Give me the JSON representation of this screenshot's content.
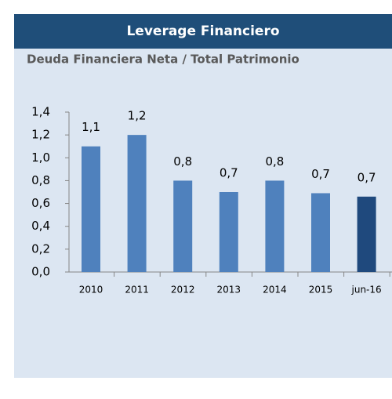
{
  "chart_data": {
    "type": "bar",
    "title": "Leverage Financiero",
    "subtitle": "Deuda Financiera Neta / Total Patrimonio",
    "categories": [
      "2010",
      "2011",
      "2012",
      "2013",
      "2014",
      "2015",
      "jun-16"
    ],
    "values": [
      1.1,
      1.2,
      0.8,
      0.7,
      0.8,
      0.69,
      0.66
    ],
    "value_labels": [
      "1,1",
      "1,2",
      "0,8",
      "0,7",
      "0,8",
      "0,7",
      "0,7"
    ],
    "colors": [
      "#4f81bd",
      "#4f81bd",
      "#4f81bd",
      "#4f81bd",
      "#4f81bd",
      "#4f81bd",
      "#1f497d"
    ],
    "ylim": [
      0,
      1.4
    ],
    "yticks": [
      {
        "value": 0,
        "label": "0,0"
      },
      {
        "value": 0.2,
        "label": "0,2"
      },
      {
        "value": 0.4,
        "label": "0,4"
      },
      {
        "value": 0.6,
        "label": "0,6"
      },
      {
        "value": 0.8,
        "label": "0,8"
      },
      {
        "value": 1.0,
        "label": "1,0"
      },
      {
        "value": 1.2,
        "label": "1,2"
      },
      {
        "value": 1.4,
        "label": "1,4"
      }
    ],
    "grid": false
  }
}
